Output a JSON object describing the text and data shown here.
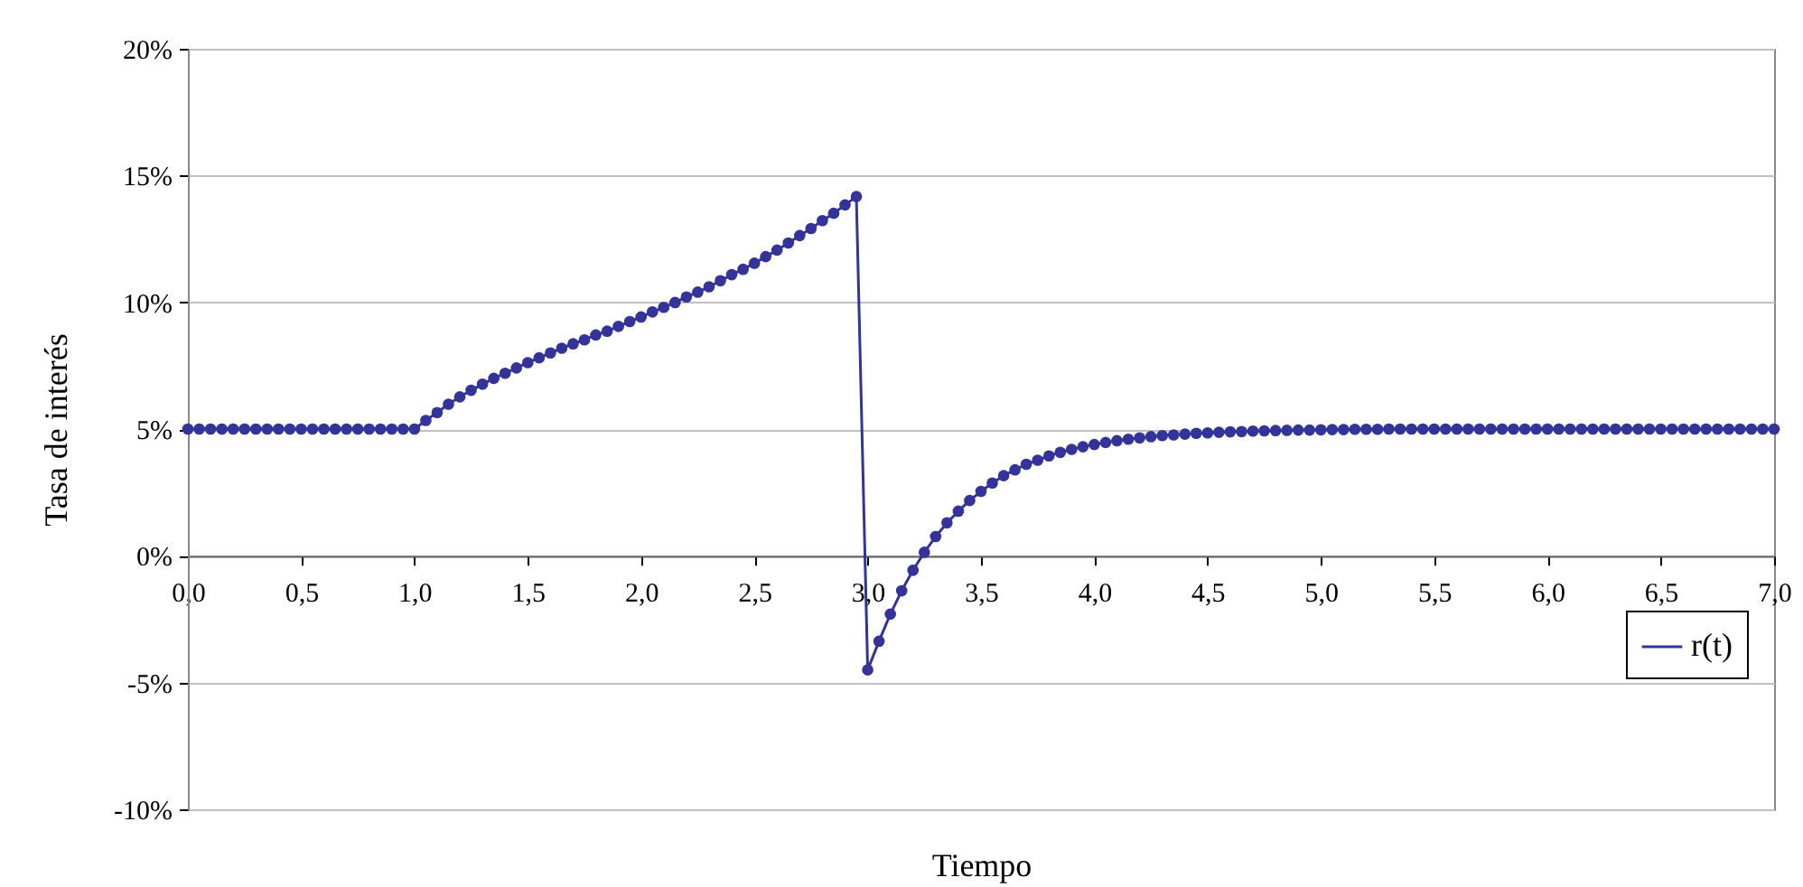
{
  "chart_data": {
    "type": "line",
    "xlabel": "Tiempo",
    "ylabel": "Tasa de interés",
    "x": [
      0,
      0.05,
      0.1,
      0.15,
      0.2,
      0.25,
      0.3,
      0.35,
      0.4,
      0.45,
      0.5,
      0.55,
      0.6,
      0.65,
      0.7,
      0.75,
      0.8,
      0.85,
      0.9,
      0.95,
      1,
      1.05,
      1.1,
      1.15,
      1.2,
      1.25,
      1.3,
      1.35,
      1.4,
      1.45,
      1.5,
      1.55,
      1.6,
      1.65,
      1.7,
      1.75,
      1.8,
      1.85,
      1.9,
      1.95,
      2,
      2.05,
      2.1,
      2.15,
      2.2,
      2.25,
      2.3,
      2.35,
      2.4,
      2.45,
      2.5,
      2.55,
      2.6,
      2.65,
      2.7,
      2.75,
      2.8,
      2.85,
      2.9,
      2.95,
      3,
      3.05,
      3.1,
      3.15,
      3.2,
      3.25,
      3.3,
      3.35,
      3.4,
      3.45,
      3.5,
      3.55,
      3.6,
      3.65,
      3.7,
      3.75,
      3.8,
      3.85,
      3.9,
      3.95,
      4,
      4.05,
      4.1,
      4.15,
      4.2,
      4.25,
      4.3,
      4.35,
      4.4,
      4.45,
      4.5,
      4.55,
      4.6,
      4.65,
      4.7,
      4.75,
      4.8,
      4.85,
      4.9,
      4.95,
      5,
      5.05,
      5.1,
      5.15,
      5.2,
      5.25,
      5.3,
      5.35,
      5.4,
      5.45,
      5.5,
      5.55,
      5.6,
      5.65,
      5.7,
      5.75,
      5.8,
      5.85,
      5.9,
      5.95,
      6,
      6.05,
      6.1,
      6.15,
      6.2,
      6.25,
      6.3,
      6.35,
      6.4,
      6.45,
      6.5,
      6.55,
      6.6,
      6.65,
      6.7,
      6.75,
      6.8,
      6.85,
      6.9,
      6.95,
      7
    ],
    "series": [
      {
        "name": "r(t)",
        "color": "#333399",
        "values": [
          5,
          5,
          5,
          5,
          5,
          5,
          5,
          5,
          5,
          5,
          5,
          5,
          5,
          5,
          5,
          5,
          5,
          5,
          5,
          5,
          5,
          5.34,
          5.65,
          5.98,
          6.27,
          6.53,
          6.77,
          7.0,
          7.2,
          7.41,
          7.62,
          7.81,
          8.0,
          8.19,
          8.36,
          8.52,
          8.71,
          8.86,
          9.05,
          9.24,
          9.42,
          9.62,
          9.8,
          9.99,
          10.21,
          10.4,
          10.61,
          10.85,
          11.09,
          11.3,
          11.54,
          11.8,
          12.06,
          12.34,
          12.63,
          12.91,
          13.22,
          13.51,
          13.84,
          14.17,
          -4.5,
          -3.37,
          -2.3,
          -1.38,
          -0.57,
          0.14,
          0.76,
          1.3,
          1.76,
          2.18,
          2.54,
          2.87,
          3.16,
          3.39,
          3.61,
          3.77,
          3.94,
          4.08,
          4.2,
          4.3,
          4.39,
          4.47,
          4.54,
          4.6,
          4.65,
          4.7,
          4.74,
          4.77,
          4.8,
          4.83,
          4.85,
          4.87,
          4.89,
          4.9,
          4.92,
          4.93,
          4.94,
          4.95,
          4.96,
          4.96,
          4.97,
          4.98,
          4.98,
          4.99,
          4.99,
          4.99,
          5,
          5,
          5,
          5,
          5,
          5,
          5,
          5,
          5,
          5,
          5,
          5,
          5,
          5,
          5,
          5,
          5,
          5,
          5,
          5,
          5,
          5,
          5,
          5,
          5,
          5,
          5,
          5,
          5,
          5,
          5,
          5,
          5,
          5,
          5
        ]
      }
    ],
    "xlim": [
      0,
      7
    ],
    "xticks": [
      {
        "value": 0,
        "label": "0,0"
      },
      {
        "value": 0.5,
        "label": "0,5"
      },
      {
        "value": 1,
        "label": "1,0"
      },
      {
        "value": 1.5,
        "label": "1,5"
      },
      {
        "value": 2,
        "label": "2,0"
      },
      {
        "value": 2.5,
        "label": "2,5"
      },
      {
        "value": 3,
        "label": "3,0"
      },
      {
        "value": 3.5,
        "label": "3,5"
      },
      {
        "value": 4,
        "label": "4,0"
      },
      {
        "value": 4.5,
        "label": "4,5"
      },
      {
        "value": 5,
        "label": "5,0"
      },
      {
        "value": 5.5,
        "label": "5,5"
      },
      {
        "value": 6,
        "label": "6,0"
      },
      {
        "value": 6.5,
        "label": "6,5"
      },
      {
        "value": 7,
        "label": "7,0"
      }
    ],
    "ylim": [
      -10,
      20
    ],
    "yticks": [
      {
        "value": -10,
        "label": "-10%"
      },
      {
        "value": -5,
        "label": "-5%"
      },
      {
        "value": 0,
        "label": "0%"
      },
      {
        "value": 5,
        "label": "5%"
      },
      {
        "value": 10,
        "label": "10%"
      },
      {
        "value": 15,
        "label": "15%"
      },
      {
        "value": 20,
        "label": "20%"
      }
    ],
    "grid": "y",
    "legend": "bottom right",
    "marker": "circle",
    "line_style": "solid"
  }
}
